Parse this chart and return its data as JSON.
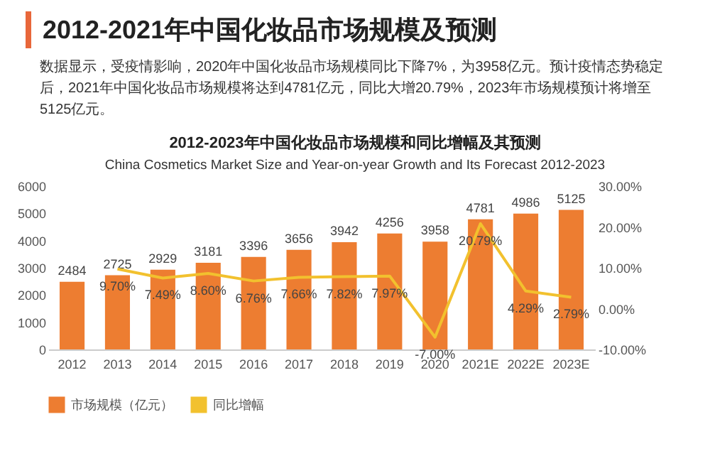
{
  "chart_data": {
    "type": "bar",
    "title": "2012-2021年中国化妆品市场规模及预测",
    "subtitle": "数据显示，受疫情影响，2020年中国化妆品市场规模同比下降7%，为3958亿元。预计疫情态势稳定后，2021年中国化妆品市场规模将达到4781亿元，同比大增20.79%，2023年市场规模预计将增至5125亿元。",
    "annotations": [
      "2012-2023年中国化妆品市场规模和同比增幅及其预测",
      "China Cosmetics Market Size and Year-on-year Growth and Its Forecast 2012-2023"
    ],
    "categories": [
      "2012",
      "2013",
      "2014",
      "2015",
      "2016",
      "2017",
      "2018",
      "2019",
      "2020",
      "2021E",
      "2022E",
      "2023E"
    ],
    "series": [
      {
        "name": "市场规模（亿元）",
        "color": "#ed7d31",
        "values": [
          2484,
          2725,
          2929,
          3181,
          3396,
          3656,
          3942,
          4256,
          3958,
          4781,
          4986,
          5125
        ],
        "value_labels": [
          "2484",
          "2725",
          "2929",
          "3181",
          "3396",
          "3656",
          "3942",
          "4256",
          "3958",
          "4781",
          "4986",
          "5125"
        ]
      },
      {
        "name": "同比增幅",
        "type": "line",
        "axis": "y2",
        "color": "#f2c12e",
        "values": [
          null,
          9.7,
          7.49,
          8.6,
          6.76,
          7.66,
          7.82,
          7.97,
          -7.0,
          20.79,
          4.29,
          2.79
        ],
        "value_labels": [
          null,
          "9.70%",
          "7.49%",
          "8.60%",
          "6.76%",
          "7.66%",
          "7.82%",
          "7.97%",
          "-7.00%",
          "20.79%",
          "4.29%",
          "2.79%"
        ]
      }
    ],
    "ylim": [
      0,
      6000
    ],
    "yticks": [
      0,
      1000,
      2000,
      3000,
      4000,
      5000,
      6000
    ],
    "y2lim": [
      -10,
      30
    ],
    "y2ticks": [
      {
        "value": -10,
        "label": "-10.00%"
      },
      {
        "value": 0,
        "label": "0.00%"
      },
      {
        "value": 10,
        "label": "10.00%"
      },
      {
        "value": 20,
        "label": "20.00%"
      },
      {
        "value": 30,
        "label": "30.00%"
      }
    ],
    "legend": "bottom"
  }
}
